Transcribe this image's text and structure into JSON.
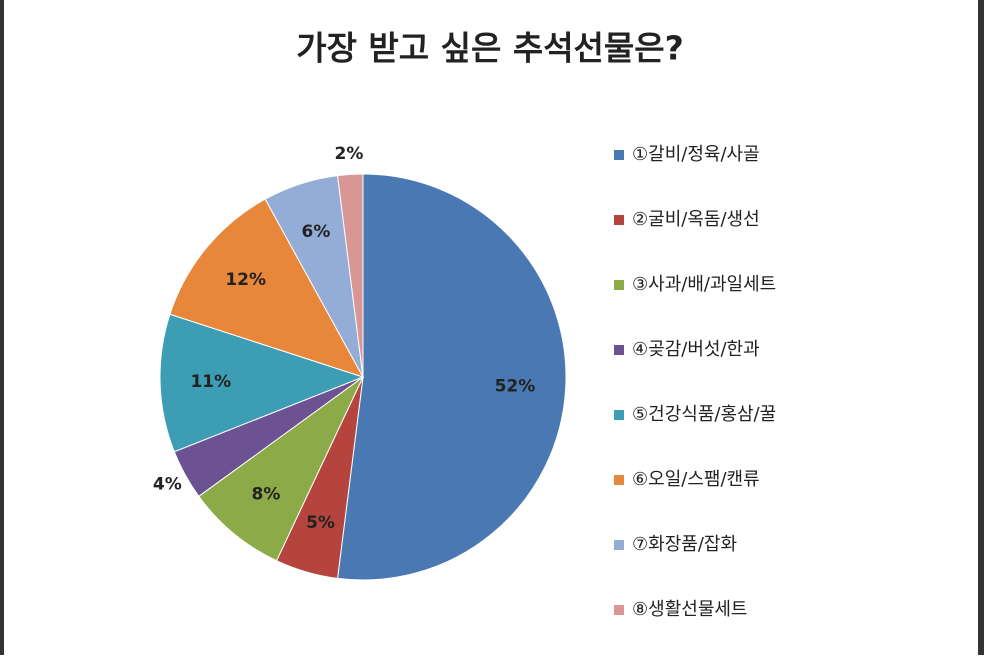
{
  "chart_data": {
    "type": "pie",
    "title": "가장 받고 싶은 추석선물은?",
    "categories": [
      "①갈비/정육/사골",
      "②굴비/옥돔/생선",
      "③사과/배/과일세트",
      "④곶감/버섯/한과",
      "⑤건강식품/홍삼/꿀",
      "⑥오일/스팸/캔류",
      "⑦화장품/잡화",
      "⑧생활선물세트"
    ],
    "values": [
      52,
      5,
      8,
      4,
      11,
      12,
      6,
      2
    ],
    "value_labels": [
      "52%",
      "5%",
      "8%",
      "4%",
      "11%",
      "12%",
      "6%",
      "2%"
    ],
    "colors": [
      "#4a78b2",
      "#b5443f",
      "#8cab48",
      "#6d5293",
      "#3d9db5",
      "#e8873a",
      "#94add6",
      "#d99694"
    ],
    "legend": "right"
  }
}
